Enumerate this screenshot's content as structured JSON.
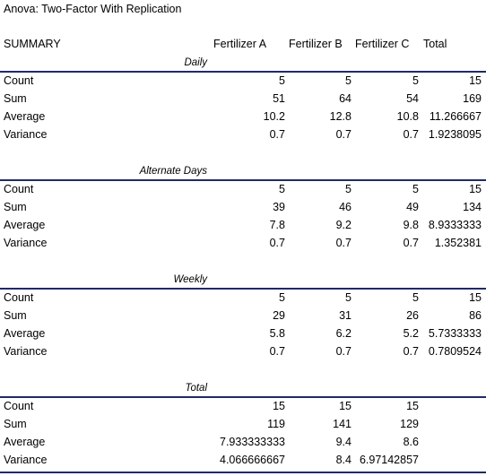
{
  "title": "Anova: Two-Factor With Replication",
  "summary": {
    "label": "SUMMARY",
    "headers": [
      "Fertilizer A",
      "Fertilizer B",
      "Fertilizer C",
      "Total"
    ]
  },
  "sections": [
    {
      "label": "Daily",
      "rows": [
        {
          "label": "Count",
          "values": [
            "5",
            "5",
            "5",
            "15"
          ]
        },
        {
          "label": "Sum",
          "values": [
            "51",
            "64",
            "54",
            "169"
          ]
        },
        {
          "label": "Average",
          "values": [
            "10.2",
            "12.8",
            "10.8",
            "11.266667"
          ]
        },
        {
          "label": "Variance",
          "values": [
            "0.7",
            "0.7",
            "0.7",
            "1.9238095"
          ]
        }
      ]
    },
    {
      "label": "Alternate Days",
      "rows": [
        {
          "label": "Count",
          "values": [
            "5",
            "5",
            "5",
            "15"
          ]
        },
        {
          "label": "Sum",
          "values": [
            "39",
            "46",
            "49",
            "134"
          ]
        },
        {
          "label": "Average",
          "values": [
            "7.8",
            "9.2",
            "9.8",
            "8.9333333"
          ]
        },
        {
          "label": "Variance",
          "values": [
            "0.7",
            "0.7",
            "0.7",
            "1.352381"
          ]
        }
      ]
    },
    {
      "label": "Weekly",
      "rows": [
        {
          "label": "Count",
          "values": [
            "5",
            "5",
            "5",
            "15"
          ]
        },
        {
          "label": "Sum",
          "values": [
            "29",
            "31",
            "26",
            "86"
          ]
        },
        {
          "label": "Average",
          "values": [
            "5.8",
            "6.2",
            "5.2",
            "5.7333333"
          ]
        },
        {
          "label": "Variance",
          "values": [
            "0.7",
            "0.7",
            "0.7",
            "0.7809524"
          ]
        }
      ]
    },
    {
      "label": "Total",
      "rows": [
        {
          "label": "Count",
          "values": [
            "15",
            "15",
            "15"
          ]
        },
        {
          "label": "Sum",
          "values": [
            "119",
            "141",
            "129"
          ]
        },
        {
          "label": "Average",
          "values": [
            "7.933333333",
            "9.4",
            "8.6"
          ]
        },
        {
          "label": "Variance",
          "values": [
            "4.066666667",
            "8.4",
            "6.97142857"
          ]
        }
      ]
    }
  ]
}
